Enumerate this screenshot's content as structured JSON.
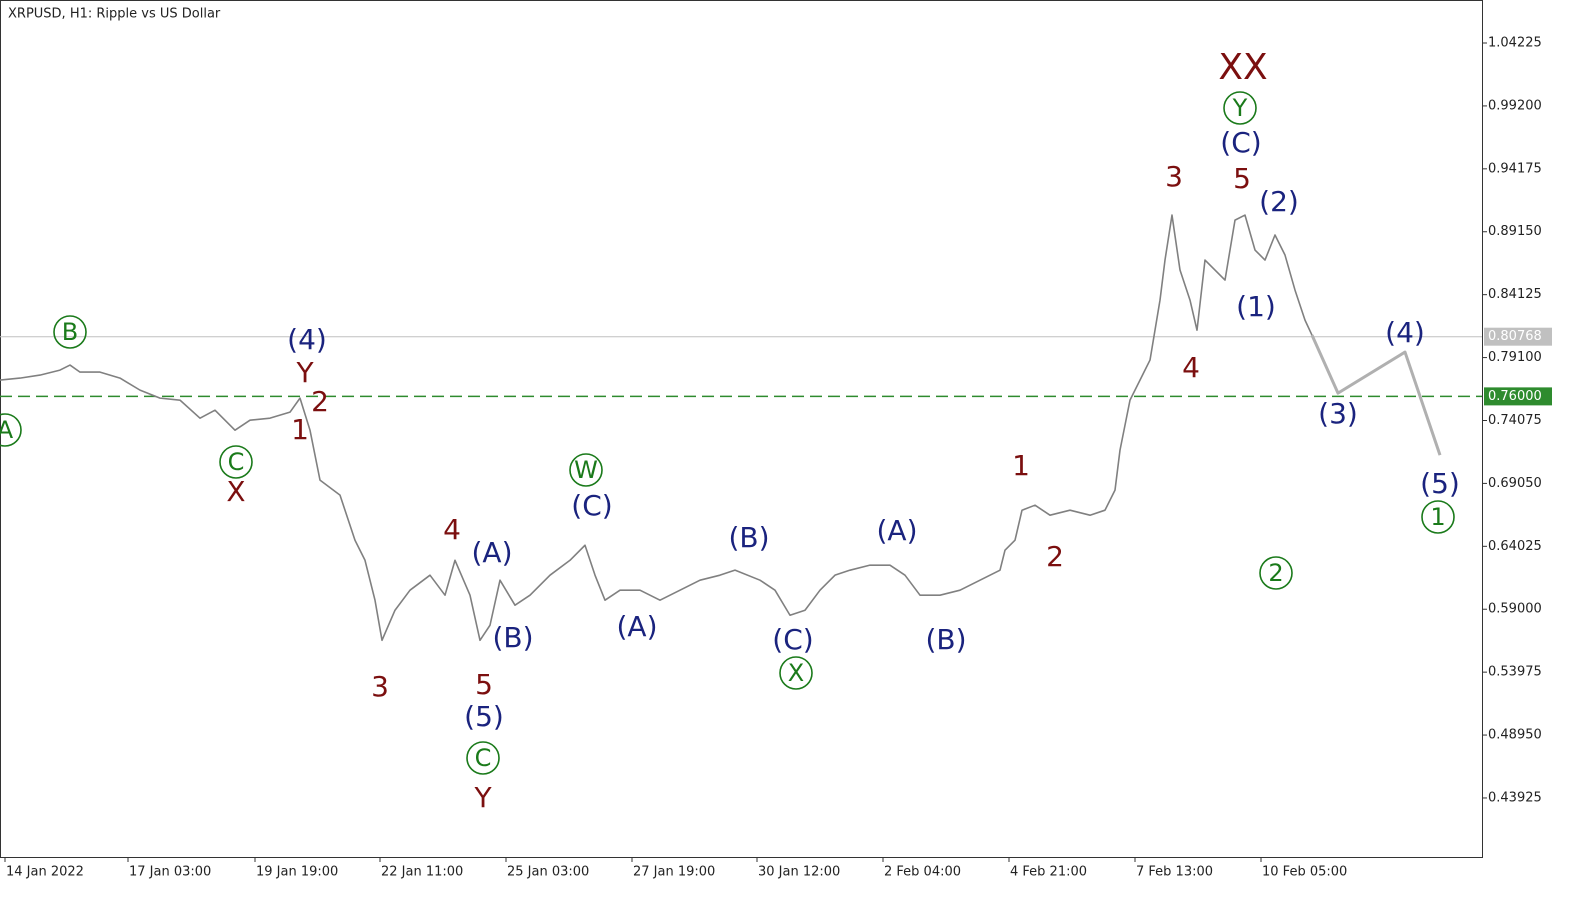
{
  "chart_data": {
    "type": "line",
    "title": "XRPUSD, H1:  Ripple vs US Dollar",
    "xlim": [
      0,
      741
    ],
    "ylim": [
      0.3921,
      1.0766
    ],
    "xticks": [
      {
        "value": 2.5,
        "label": "14 Jan 2022"
      },
      {
        "value": 64,
        "label": "17 Jan 03:00"
      },
      {
        "value": 127.5,
        "label": "19 Jan 19:00"
      },
      {
        "value": 190,
        "label": "22 Jan 11:00"
      },
      {
        "value": 253,
        "label": "25 Jan 03:00"
      },
      {
        "value": 316,
        "label": "27 Jan 19:00"
      },
      {
        "value": 378.5,
        "label": "30 Jan 12:00"
      },
      {
        "value": 441.5,
        "label": "2 Feb 04:00"
      },
      {
        "value": 504.5,
        "label": "4 Feb 21:00"
      },
      {
        "value": 567.5,
        "label": "7 Feb 13:00"
      },
      {
        "value": 630.5,
        "label": "10 Feb 05:00"
      }
    ],
    "yticks": [
      1.04225,
      {
        "value": 0.992,
        "label": "0.99200"
      },
      0.94175,
      {
        "value": 0.8915,
        "label": "0.89150"
      },
      0.84125,
      {
        "value": 0.791,
        "label": "0.79100"
      },
      0.74075,
      {
        "value": 0.6905,
        "label": "0.69050"
      },
      {
        "value": 0.64025,
        "label": "0.64025"
      },
      {
        "value": 0.59,
        "label": "0.59000"
      },
      0.53975,
      {
        "value": 0.4895,
        "label": "0.48950"
      },
      0.43925
    ],
    "series": [
      {
        "color": "#808080",
        "x": [
          0,
          10,
          20,
          30,
          35,
          40,
          50,
          60,
          70,
          80,
          90,
          100,
          107.5,
          117.5,
          125,
          135,
          145,
          150,
          155,
          160,
          170,
          177.5,
          182.5,
          187.5,
          191,
          197.5,
          205,
          215,
          222.5,
          227.5,
          235,
          240,
          245,
          250,
          257.5,
          265,
          275,
          285,
          292.5,
          297.5,
          302.5,
          310,
          320,
          330,
          340,
          350,
          360,
          367.5,
          380,
          387.5,
          395,
          402.5,
          410,
          417.5,
          425,
          435,
          445,
          452.5,
          460,
          470,
          480,
          490,
          500,
          502.5,
          507.5,
          511,
          517.5,
          525,
          535,
          545,
          552.5,
          557.5,
          560,
          565,
          570,
          575,
          580,
          582.5,
          586,
          590,
          595,
          598.5,
          602.5,
          607.5,
          612.5,
          617.5,
          622.5,
          627.5,
          632.5,
          637.5,
          642.5,
          647.5,
          652.5,
          656
        ],
        "values": [
          0.773,
          0.7746,
          0.777,
          0.781,
          0.785,
          0.7794,
          0.7794,
          0.7746,
          0.765,
          0.7586,
          0.757,
          0.7426,
          0.749,
          0.733,
          0.741,
          0.7426,
          0.7474,
          0.7586,
          0.733,
          0.6931,
          0.6811,
          0.6451,
          0.6291,
          0.5972,
          0.5652,
          0.5892,
          0.6052,
          0.6172,
          0.6012,
          0.6291,
          0.6012,
          0.5652,
          0.5772,
          0.6132,
          0.5932,
          0.6012,
          0.6172,
          0.6291,
          0.6411,
          0.6172,
          0.5972,
          0.6052,
          0.6052,
          0.5972,
          0.6052,
          0.6132,
          0.6172,
          0.6212,
          0.6132,
          0.6052,
          0.5852,
          0.5892,
          0.6052,
          0.6172,
          0.6212,
          0.6252,
          0.6252,
          0.6172,
          0.6012,
          0.6012,
          0.6052,
          0.6132,
          0.6212,
          0.6372,
          0.6451,
          0.6691,
          0.6731,
          0.6651,
          0.6691,
          0.6651,
          0.6691,
          0.6851,
          0.7171,
          0.757,
          0.773,
          0.789,
          0.8369,
          0.8689,
          0.9048,
          0.8609,
          0.8369,
          0.8129,
          0.8689,
          0.8609,
          0.8529,
          0.9008,
          0.9048,
          0.8769,
          0.8689,
          0.8889,
          0.8729,
          0.8449,
          0.8209,
          0.8089
        ]
      },
      {
        "color": "#b0b0b0",
        "x": [
          656,
          669,
          702.5,
          720
        ],
        "values": [
          0.8089,
          0.7626,
          0.7954,
          0.7131
        ]
      }
    ],
    "levels": [
      {
        "value": 0.80768,
        "color": "#c0c0c0",
        "style": "solid"
      },
      {
        "value": 0.76,
        "label": "0.76000",
        "color": "#2e8b2e",
        "style": "dashed"
      }
    ],
    "annotations": [
      {
        "text": "A",
        "color": "#1a7a1a",
        "circled": true
      },
      {
        "text": "B",
        "color": "#1a7a1a",
        "circled": true
      },
      {
        "text": "(4)",
        "color": "#1a237e"
      },
      {
        "text": "Y",
        "color": "#7b0f0f"
      },
      {
        "text": "2",
        "color": "#7b0f0f"
      },
      {
        "text": "1",
        "color": "#7b0f0f"
      },
      {
        "text": "C",
        "color": "#1a7a1a",
        "circled": true
      },
      {
        "text": "X",
        "color": "#7b0f0f"
      },
      {
        "text": "3",
        "color": "#7b0f0f"
      },
      {
        "text": "4",
        "color": "#7b0f0f"
      },
      {
        "text": "(A)",
        "color": "#1a237e"
      },
      {
        "text": "(B)",
        "color": "#1a237e"
      },
      {
        "text": "5",
        "color": "#7b0f0f"
      },
      {
        "text": "(5)",
        "color": "#1a237e"
      },
      {
        "text": "C",
        "color": "#1a7a1a",
        "circled": true
      },
      {
        "text": "Y",
        "color": "#7b0f0f"
      },
      {
        "text": "W",
        "color": "#1a7a1a",
        "circled": true
      },
      {
        "text": "(C)",
        "color": "#1a237e"
      },
      {
        "text": "(A)",
        "color": "#1a237e"
      },
      {
        "text": "(B)",
        "color": "#1a237e"
      },
      {
        "text": "(C)",
        "color": "#1a237e"
      },
      {
        "text": "X",
        "color": "#1a7a1a",
        "circled": true
      },
      {
        "text": "(A)",
        "color": "#1a237e"
      },
      {
        "text": "(B)",
        "color": "#1a237e"
      },
      {
        "text": "1",
        "color": "#7b0f0f"
      },
      {
        "text": "2",
        "color": "#7b0f0f"
      },
      {
        "text": "3",
        "color": "#7b0f0f"
      },
      {
        "text": "4",
        "color": "#7b0f0f"
      },
      {
        "text": "XX",
        "color": "#7b0f0f"
      },
      {
        "text": "Y",
        "color": "#1a7a1a",
        "circled": true
      },
      {
        "text": "(C)",
        "color": "#1a237e"
      },
      {
        "text": "5",
        "color": "#7b0f0f"
      },
      {
        "text": "(2)",
        "color": "#1a237e"
      },
      {
        "text": "(1)",
        "color": "#1a237e"
      },
      {
        "text": "(4)",
        "color": "#1a237e"
      },
      {
        "text": "(3)",
        "color": "#1a237e"
      },
      {
        "text": "(5)",
        "color": "#1a237e"
      },
      {
        "text": "1",
        "color": "#1a7a1a",
        "circled": true
      },
      {
        "text": "2",
        "color": "#1a7a1a",
        "circled": true
      }
    ]
  }
}
